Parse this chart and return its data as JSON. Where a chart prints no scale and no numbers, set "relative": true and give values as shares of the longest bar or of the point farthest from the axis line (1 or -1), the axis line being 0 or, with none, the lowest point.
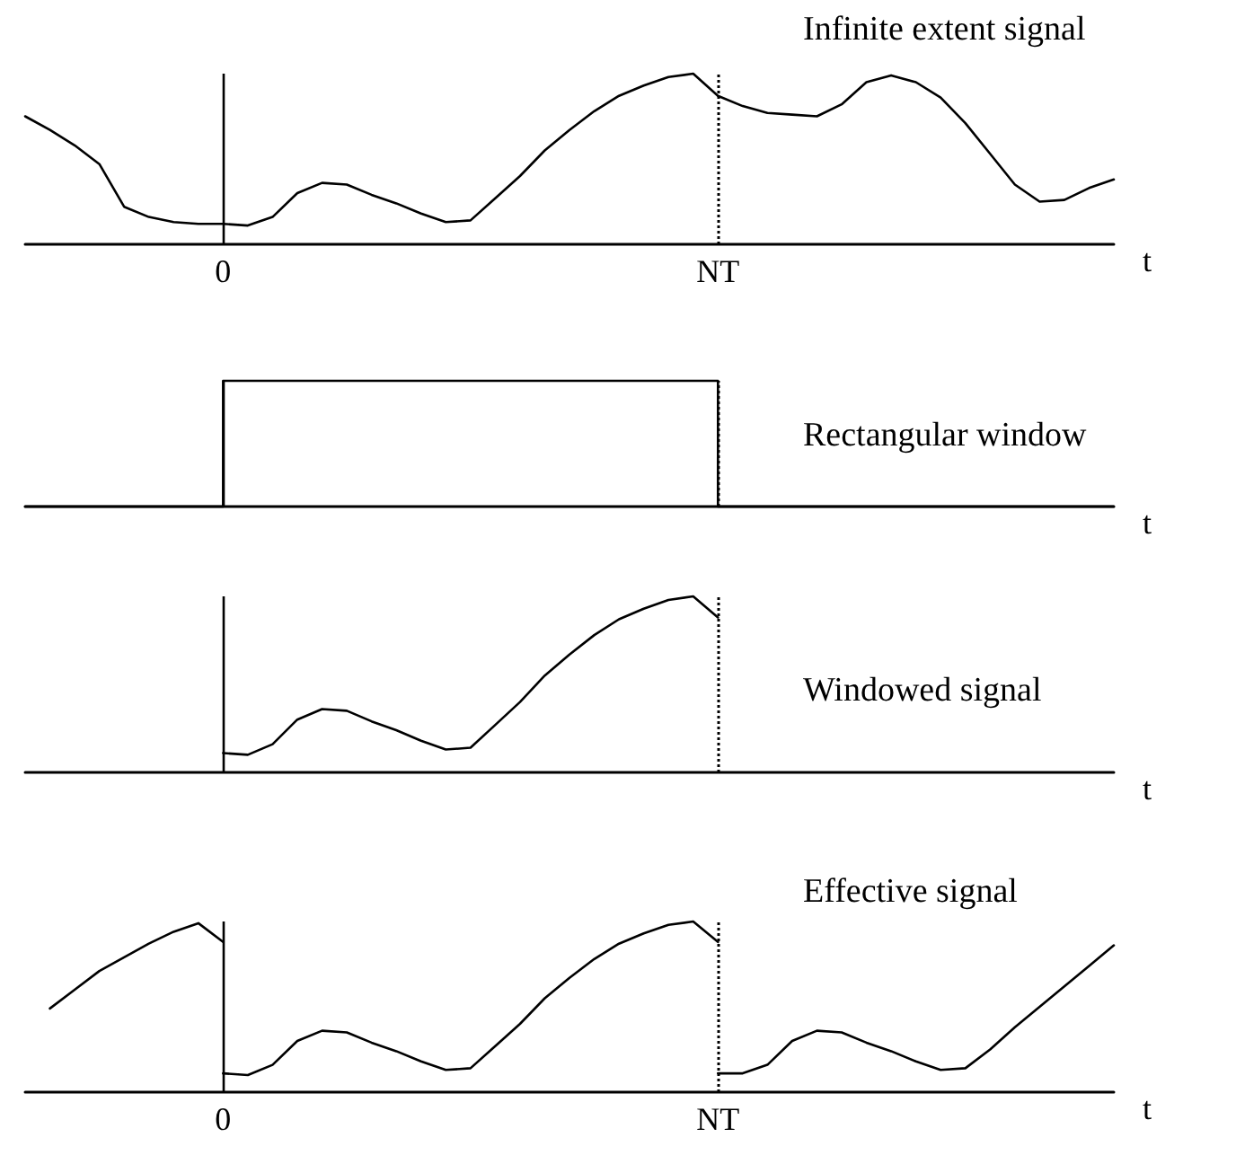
{
  "chart_data": [
    {
      "type": "line",
      "title": "Infinite extent signal",
      "xlabel": "t",
      "relative": true,
      "tick_labels": "x",
      "marker": "none",
      "line_style": "solid",
      "categories": [
        null,
        null,
        null,
        null,
        null,
        null,
        null,
        null,
        "0",
        null,
        null,
        null,
        null,
        null,
        null,
        null,
        null,
        null,
        null,
        null,
        null,
        null,
        null,
        null,
        null,
        null,
        null,
        null,
        "NT",
        null,
        null,
        null,
        null,
        null,
        null,
        null,
        null,
        null,
        null,
        null,
        null,
        null,
        null,
        null,
        null
      ],
      "ref_lines": [
        {
          "axis": "x",
          "value": "0",
          "line_style": "solid",
          "color": "#000000"
        },
        {
          "axis": "x",
          "value": "NT",
          "line_style": "dotted",
          "color": "#000000"
        }
      ],
      "series": [
        {
          "color": "#000000",
          "values": [
            0.75,
            0.67,
            0.58,
            0.47,
            0.22,
            0.16,
            0.13,
            0.12,
            0.12,
            0.11,
            0.16,
            0.3,
            0.36,
            0.35,
            0.29,
            0.24,
            0.18,
            0.13,
            0.14,
            0.27,
            0.4,
            0.55,
            0.67,
            0.78,
            0.87,
            0.93,
            0.98,
            1,
            0.87,
            0.81,
            0.77,
            0.76,
            0.75,
            0.82,
            0.95,
            0.99,
            0.95,
            0.86,
            0.71,
            0.53,
            0.35,
            0.25,
            0.26,
            0.33,
            0.38
          ]
        }
      ]
    },
    {
      "type": "step",
      "title": "Rectangular window",
      "xlabel": "t",
      "relative": true,
      "tick_labels": false,
      "marker": "none",
      "line_style": "solid",
      "categories": [
        null,
        null,
        null,
        null,
        null,
        null,
        null,
        null,
        "0",
        null,
        null,
        null,
        null,
        null,
        null,
        null,
        null,
        null,
        null,
        null,
        null,
        null,
        null,
        null,
        null,
        null,
        null,
        null,
        "NT",
        null,
        null,
        null,
        null,
        null,
        null,
        null,
        null,
        null,
        null,
        null,
        null,
        null,
        null,
        null,
        null
      ],
      "ref_lines": [
        {
          "axis": "x",
          "value": "0",
          "line_style": "solid",
          "color": "#000000"
        },
        {
          "axis": "x",
          "value": "NT",
          "line_style": "dotted",
          "color": "#000000"
        }
      ],
      "series": [
        {
          "color": "#000000",
          "values": [
            0,
            0,
            0,
            0,
            0,
            0,
            0,
            0,
            1,
            1,
            1,
            1,
            1,
            1,
            1,
            1,
            1,
            1,
            1,
            1,
            1,
            1,
            1,
            1,
            1,
            1,
            1,
            1,
            0,
            0,
            0,
            0,
            0,
            0,
            0,
            0,
            0,
            0,
            0,
            0,
            0,
            0,
            0,
            0,
            0
          ]
        }
      ]
    },
    {
      "type": "line",
      "title": "Windowed signal",
      "xlabel": "t",
      "relative": true,
      "tick_labels": false,
      "marker": "none",
      "line_style": "solid",
      "categories": [
        null,
        null,
        null,
        null,
        null,
        null,
        null,
        null,
        "0",
        null,
        null,
        null,
        null,
        null,
        null,
        null,
        null,
        null,
        null,
        null,
        null,
        null,
        null,
        null,
        null,
        null,
        null,
        null,
        "NT",
        null,
        null,
        null,
        null,
        null,
        null,
        null,
        null,
        null,
        null,
        null,
        null,
        null,
        null,
        null,
        null
      ],
      "ref_lines": [
        {
          "axis": "x",
          "value": "0",
          "line_style": "solid",
          "color": "#000000"
        },
        {
          "axis": "x",
          "value": "NT",
          "line_style": "dotted",
          "color": "#000000"
        }
      ],
      "series": [
        {
          "color": "#000000",
          "values": [
            null,
            null,
            null,
            null,
            null,
            null,
            null,
            null,
            0.11,
            0.1,
            0.16,
            0.3,
            0.36,
            0.35,
            0.29,
            0.24,
            0.18,
            0.13,
            0.14,
            0.27,
            0.4,
            0.55,
            0.67,
            0.78,
            0.87,
            0.93,
            0.98,
            1,
            0.88,
            null,
            null,
            null,
            null,
            null,
            null,
            null,
            null,
            null,
            null,
            null,
            null,
            null,
            null,
            null,
            null
          ]
        }
      ]
    },
    {
      "type": "line",
      "title": "Effective signal",
      "xlabel": "t",
      "relative": true,
      "tick_labels": "x",
      "marker": "none",
      "line_style": "solid",
      "categories": [
        null,
        null,
        null,
        null,
        null,
        null,
        null,
        null,
        "0",
        null,
        null,
        null,
        null,
        null,
        null,
        null,
        null,
        null,
        null,
        null,
        null,
        null,
        null,
        null,
        null,
        null,
        null,
        null,
        "NT",
        null,
        null,
        null,
        null,
        null,
        null,
        null,
        null,
        null,
        null,
        null,
        null,
        null,
        null,
        null,
        null
      ],
      "ref_lines": [
        {
          "axis": "x",
          "value": "0",
          "line_style": "solid",
          "color": "#000000"
        },
        {
          "axis": "x",
          "value": "NT",
          "line_style": "dotted",
          "color": "#000000"
        }
      ],
      "series": [
        {
          "color": "#000000",
          "values": [
            null,
            0.49,
            0.6,
            0.71,
            0.79,
            0.87,
            0.94,
            0.99,
            0.88,
            null,
            null,
            null,
            null,
            null,
            null,
            null,
            null,
            null,
            null,
            null,
            null,
            null,
            null,
            null,
            null,
            null,
            null,
            null,
            null,
            null,
            null,
            null,
            null,
            null,
            null,
            null,
            null,
            null,
            null,
            null,
            null,
            null,
            null,
            null,
            null
          ]
        },
        {
          "color": "#000000",
          "values": [
            null,
            null,
            null,
            null,
            null,
            null,
            null,
            null,
            0.11,
            0.1,
            0.16,
            0.3,
            0.36,
            0.35,
            0.29,
            0.24,
            0.18,
            0.13,
            0.14,
            0.27,
            0.4,
            0.55,
            0.67,
            0.78,
            0.87,
            0.93,
            0.98,
            1,
            0.88,
            null,
            null,
            null,
            null,
            null,
            null,
            null,
            null,
            null,
            null,
            null,
            null,
            null,
            null,
            null,
            null
          ]
        },
        {
          "color": "#000000",
          "values": [
            null,
            null,
            null,
            null,
            null,
            null,
            null,
            null,
            null,
            null,
            null,
            null,
            null,
            null,
            null,
            null,
            null,
            null,
            null,
            null,
            null,
            null,
            null,
            null,
            null,
            null,
            null,
            null,
            0.11,
            0.11,
            0.16,
            0.3,
            0.36,
            0.35,
            0.29,
            0.24,
            0.18,
            0.13,
            0.14,
            0.25,
            0.38,
            0.5,
            0.62,
            0.74,
            0.86
          ]
        }
      ]
    }
  ]
}
